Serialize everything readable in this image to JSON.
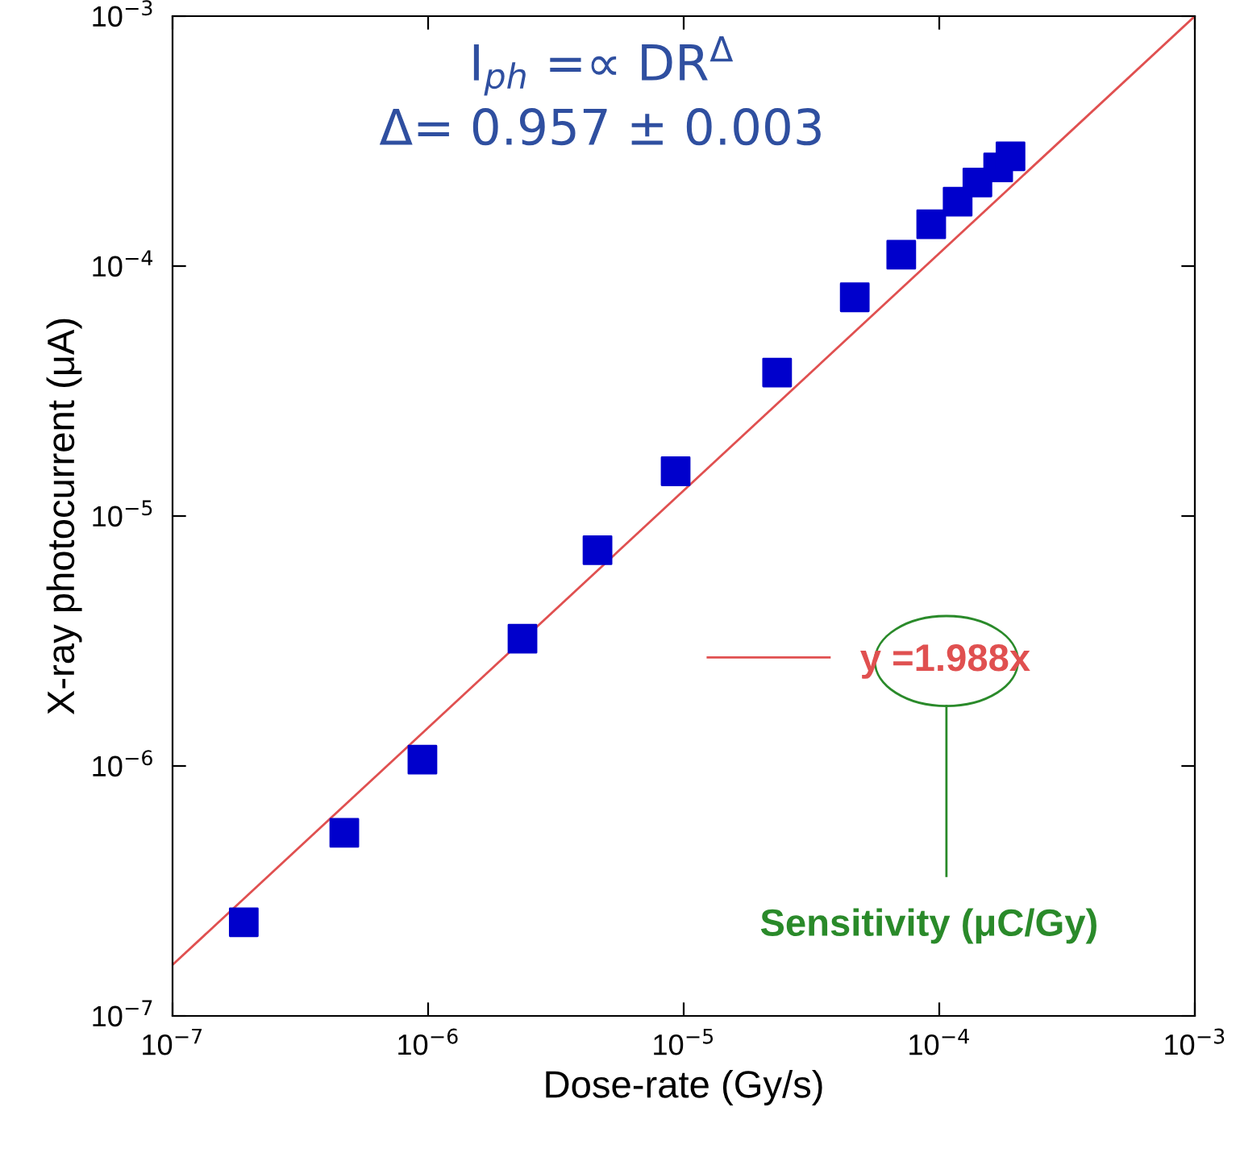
{
  "chart_data": {
    "type": "scatter",
    "xlabel": "Dose-rate (Gy/s)",
    "ylabel": "X-ray photocurrent (μA)",
    "log": "xy",
    "marker": "square",
    "grid": false,
    "legend": "right",
    "xlim": [
      1e-07,
      0.001
    ],
    "ylim": [
      1e-07,
      0.001
    ],
    "xticks": [
      {
        "value": 1e-07,
        "label": "10$^{−7}$"
      },
      {
        "value": 1e-06,
        "label": "10$^{−6}$"
      },
      {
        "value": 1e-05,
        "label": "10$^{−5}$"
      },
      {
        "value": 0.0001,
        "label": "10$^{−4}$"
      },
      {
        "value": 0.001,
        "label": "10$^{−3}$"
      }
    ],
    "yticks": [
      {
        "value": 1e-07,
        "label": "10$^{−7}$"
      },
      {
        "value": 1e-06,
        "label": "10$^{−6}$"
      },
      {
        "value": 1e-05,
        "label": "10$^{−5}$"
      },
      {
        "value": 0.0001,
        "label": "10$^{−4}$"
      },
      {
        "value": 0.001,
        "label": "10$^{−3}$"
      }
    ],
    "series": [
      {
        "color": "#0000cc",
        "x": [
          1.9e-07,
          4.7e-07,
          9.5e-07,
          2.34e-06,
          4.6e-06,
          9.3e-06,
          2.32e-05,
          4.67e-05,
          7.1e-05,
          9.3e-05,
          0.000118,
          0.000141,
          0.00017,
          0.00019
        ],
        "values": [
          2.37e-07,
          5.4e-07,
          1.06e-06,
          3.23e-06,
          7.3e-06,
          1.51e-05,
          3.75e-05,
          7.5e-05,
          0.000111,
          0.000147,
          0.000181,
          0.000216,
          0.000248,
          0.000275
        ]
      },
      {
        "type": "line",
        "name": "y =1.988x",
        "color": "#e05050",
        "marker": "none",
        "x": [
          1e-07,
          0.001
        ],
        "values": [
          1.6e-07,
          0.001
        ]
      }
    ],
    "annotations": [
      "I$_{ph}$ =∝ DR$^{Δ}$",
      "Δ= 0.957 ± 0.003",
      "Sensitivity (μC/Gy)"
    ]
  }
}
